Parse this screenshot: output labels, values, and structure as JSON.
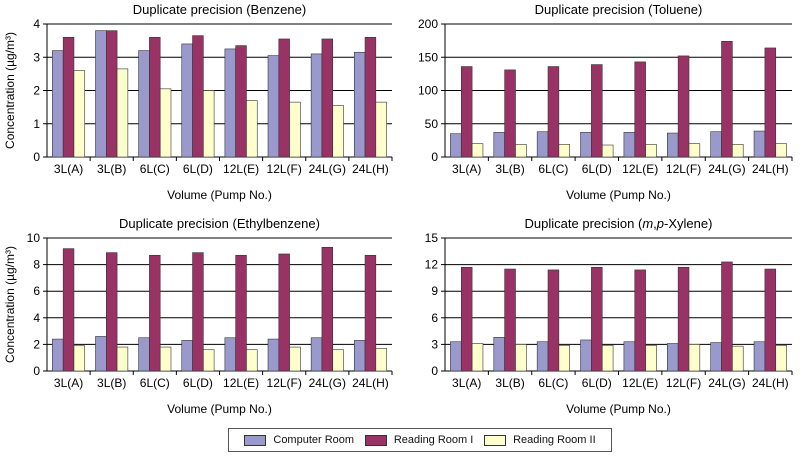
{
  "colors": {
    "computer": "#9a99cc",
    "reading1": "#993366",
    "reading2": "#ffffcc",
    "grid": "#000000"
  },
  "legend": [
    {
      "label": "Computer Room",
      "color": "#9a99cc"
    },
    {
      "label": "Reading Room I",
      "color": "#993366"
    },
    {
      "label": "Reading Room II",
      "color": "#ffffcc"
    }
  ],
  "chart_data": [
    {
      "type": "bar",
      "title": "Duplicate precision (Benzene)",
      "title_parts": [],
      "ylabel": "Concentration (µg/m³)",
      "xlabel": "Volume (Pump No.)",
      "categories": [
        "3L(A)",
        "3L(B)",
        "6L(C)",
        "6L(D)",
        "12L(E)",
        "12L(F)",
        "24L(G)",
        "24L(H)"
      ],
      "ylim": [
        0,
        4
      ],
      "yticks": [
        0,
        1,
        2,
        3,
        4
      ],
      "grid": true,
      "legend": "bottom",
      "series": [
        {
          "name": "Computer Room",
          "values": [
            3.2,
            3.8,
            3.2,
            3.4,
            3.25,
            3.05,
            3.1,
            3.15
          ]
        },
        {
          "name": "Reading Room I",
          "values": [
            3.6,
            3.8,
            3.6,
            3.65,
            3.35,
            3.55,
            3.55,
            3.6
          ]
        },
        {
          "name": "Reading Room II",
          "values": [
            2.6,
            2.65,
            2.05,
            2.0,
            1.7,
            1.65,
            1.55,
            1.65
          ]
        }
      ]
    },
    {
      "type": "bar",
      "title": "Duplicate precision (Toluene)",
      "title_parts": [],
      "ylabel": "",
      "xlabel": "Volume (Pump No.)",
      "categories": [
        "3L(A)",
        "3L(B)",
        "6L(C)",
        "6L(D)",
        "12L(E)",
        "12L(F)",
        "24L(G)",
        "24L(H)"
      ],
      "ylim": [
        0,
        200
      ],
      "yticks": [
        0,
        50,
        100,
        150,
        200
      ],
      "grid": true,
      "legend": "bottom",
      "series": [
        {
          "name": "Computer Room",
          "values": [
            35,
            37,
            38,
            37,
            37,
            36,
            38,
            39
          ]
        },
        {
          "name": "Reading Room I",
          "values": [
            136,
            131,
            136,
            139,
            143,
            152,
            174,
            164
          ]
        },
        {
          "name": "Reading Room II",
          "values": [
            20,
            19,
            19,
            18,
            19,
            20,
            19,
            20
          ]
        }
      ]
    },
    {
      "type": "bar",
      "title": "Duplicate precision (Ethylbenzene)",
      "title_parts": [],
      "ylabel": "Concentration (µg/m³)",
      "xlabel": "Volume (Pump No.)",
      "categories": [
        "3L(A)",
        "3L(B)",
        "6L(C)",
        "6L(D)",
        "12L(E)",
        "12L(F)",
        "24L(G)",
        "24L(H)"
      ],
      "ylim": [
        0,
        10
      ],
      "yticks": [
        0,
        2,
        4,
        6,
        8,
        10
      ],
      "grid": true,
      "legend": "bottom",
      "series": [
        {
          "name": "Computer Room",
          "values": [
            2.4,
            2.6,
            2.5,
            2.3,
            2.5,
            2.4,
            2.5,
            2.3
          ]
        },
        {
          "name": "Reading Room I",
          "values": [
            9.2,
            8.9,
            8.7,
            8.9,
            8.7,
            8.8,
            9.3,
            8.7
          ]
        },
        {
          "name": "Reading Room II",
          "values": [
            1.9,
            1.8,
            1.8,
            1.6,
            1.6,
            1.8,
            1.6,
            1.7
          ]
        }
      ]
    },
    {
      "type": "bar",
      "title": "",
      "title_parts": [
        "Duplicate precision (",
        "m",
        ",",
        "p",
        "-Xylene)"
      ],
      "ylabel": "",
      "xlabel": "Volume (Pump No.)",
      "categories": [
        "3L(A)",
        "3L(B)",
        "6L(C)",
        "6L(D)",
        "12L(E)",
        "12L(F)",
        "24L(G)",
        "24L(H)"
      ],
      "ylim": [
        0,
        15
      ],
      "yticks": [
        0,
        3,
        6,
        9,
        12,
        15
      ],
      "grid": true,
      "legend": "bottom",
      "series": [
        {
          "name": "Computer Room",
          "values": [
            3.3,
            3.8,
            3.3,
            3.5,
            3.3,
            3.1,
            3.2,
            3.3
          ]
        },
        {
          "name": "Reading Room I",
          "values": [
            11.7,
            11.5,
            11.4,
            11.7,
            11.4,
            11.7,
            12.3,
            11.5
          ]
        },
        {
          "name": "Reading Room II",
          "values": [
            3.1,
            3.0,
            2.9,
            2.9,
            2.9,
            3.0,
            2.8,
            2.9
          ]
        }
      ]
    }
  ]
}
